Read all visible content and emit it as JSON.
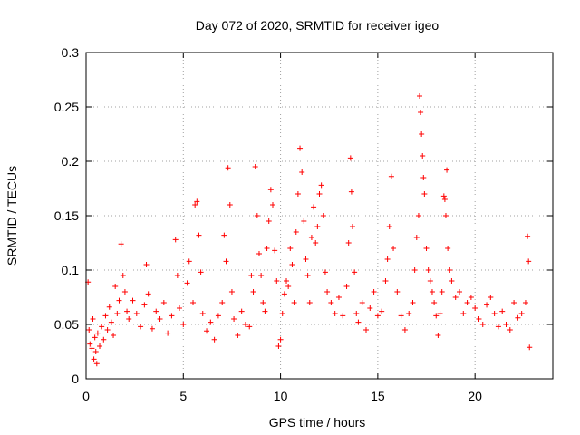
{
  "chart_data": {
    "type": "scatter",
    "title": "Day 072 of 2020, SRMTID for receiver igeo",
    "xlabel": "GPS time / hours",
    "ylabel": "SRMTID / TECUs",
    "xlim": [
      0,
      24
    ],
    "ylim": [
      0,
      0.3
    ],
    "x_ticks": [
      0,
      5,
      10,
      15,
      20
    ],
    "x_tick_labels": [
      "0",
      "5",
      "10",
      "15",
      "20"
    ],
    "y_ticks": [
      0,
      0.05,
      0.1,
      0.15,
      0.2,
      0.25,
      0.3
    ],
    "y_tick_labels": [
      "0",
      "0.05",
      "0.1",
      "0.15",
      "0.2",
      "0.25",
      "0.3"
    ],
    "grid": true,
    "marker": "+",
    "color": "#ff0000",
    "series": [
      {
        "name": "SRMTID",
        "points": [
          [
            0.1,
            0.089
          ],
          [
            0.15,
            0.045
          ],
          [
            0.2,
            0.032
          ],
          [
            0.3,
            0.028
          ],
          [
            0.35,
            0.055
          ],
          [
            0.4,
            0.018
          ],
          [
            0.45,
            0.038
          ],
          [
            0.5,
            0.025
          ],
          [
            0.55,
            0.014
          ],
          [
            0.6,
            0.042
          ],
          [
            0.7,
            0.03
          ],
          [
            0.8,
            0.048
          ],
          [
            0.9,
            0.036
          ],
          [
            1.0,
            0.058
          ],
          [
            1.1,
            0.045
          ],
          [
            1.2,
            0.066
          ],
          [
            1.3,
            0.052
          ],
          [
            1.4,
            0.04
          ],
          [
            1.5,
            0.085
          ],
          [
            1.6,
            0.06
          ],
          [
            1.7,
            0.072
          ],
          [
            1.8,
            0.124
          ],
          [
            1.9,
            0.095
          ],
          [
            2.0,
            0.08
          ],
          [
            2.1,
            0.062
          ],
          [
            2.2,
            0.055
          ],
          [
            2.4,
            0.072
          ],
          [
            2.6,
            0.06
          ],
          [
            2.8,
            0.048
          ],
          [
            3.0,
            0.068
          ],
          [
            3.1,
            0.105
          ],
          [
            3.2,
            0.078
          ],
          [
            3.4,
            0.046
          ],
          [
            3.6,
            0.062
          ],
          [
            3.8,
            0.055
          ],
          [
            4.0,
            0.07
          ],
          [
            4.2,
            0.042
          ],
          [
            4.4,
            0.058
          ],
          [
            4.6,
            0.128
          ],
          [
            4.7,
            0.095
          ],
          [
            4.8,
            0.065
          ],
          [
            5.0,
            0.05
          ],
          [
            5.2,
            0.088
          ],
          [
            5.3,
            0.108
          ],
          [
            5.5,
            0.07
          ],
          [
            5.6,
            0.16
          ],
          [
            5.7,
            0.163
          ],
          [
            5.8,
            0.132
          ],
          [
            5.9,
            0.098
          ],
          [
            6.0,
            0.06
          ],
          [
            6.2,
            0.044
          ],
          [
            6.4,
            0.052
          ],
          [
            6.6,
            0.036
          ],
          [
            6.8,
            0.058
          ],
          [
            7.0,
            0.07
          ],
          [
            7.1,
            0.132
          ],
          [
            7.2,
            0.108
          ],
          [
            7.3,
            0.194
          ],
          [
            7.4,
            0.16
          ],
          [
            7.5,
            0.08
          ],
          [
            7.6,
            0.055
          ],
          [
            7.8,
            0.04
          ],
          [
            8.0,
            0.062
          ],
          [
            8.2,
            0.05
          ],
          [
            8.4,
            0.048
          ],
          [
            8.5,
            0.095
          ],
          [
            8.6,
            0.08
          ],
          [
            8.7,
            0.195
          ],
          [
            8.8,
            0.15
          ],
          [
            8.9,
            0.115
          ],
          [
            9.0,
            0.095
          ],
          [
            9.1,
            0.07
          ],
          [
            9.2,
            0.062
          ],
          [
            9.3,
            0.12
          ],
          [
            9.4,
            0.145
          ],
          [
            9.5,
            0.174
          ],
          [
            9.6,
            0.16
          ],
          [
            9.7,
            0.118
          ],
          [
            9.8,
            0.09
          ],
          [
            9.9,
            0.03
          ],
          [
            10.0,
            0.036
          ],
          [
            10.1,
            0.06
          ],
          [
            10.2,
            0.078
          ],
          [
            10.3,
            0.09
          ],
          [
            10.4,
            0.085
          ],
          [
            10.5,
            0.12
          ],
          [
            10.6,
            0.105
          ],
          [
            10.7,
            0.07
          ],
          [
            10.8,
            0.135
          ],
          [
            10.9,
            0.17
          ],
          [
            11.0,
            0.212
          ],
          [
            11.1,
            0.19
          ],
          [
            11.2,
            0.145
          ],
          [
            11.3,
            0.11
          ],
          [
            11.4,
            0.095
          ],
          [
            11.5,
            0.07
          ],
          [
            11.6,
            0.13
          ],
          [
            11.7,
            0.158
          ],
          [
            11.8,
            0.125
          ],
          [
            11.9,
            0.14
          ],
          [
            12.0,
            0.17
          ],
          [
            12.1,
            0.178
          ],
          [
            12.2,
            0.15
          ],
          [
            12.3,
            0.098
          ],
          [
            12.4,
            0.08
          ],
          [
            12.6,
            0.07
          ],
          [
            12.8,
            0.06
          ],
          [
            13.0,
            0.075
          ],
          [
            13.2,
            0.058
          ],
          [
            13.4,
            0.085
          ],
          [
            13.5,
            0.125
          ],
          [
            13.6,
            0.203
          ],
          [
            13.65,
            0.172
          ],
          [
            13.7,
            0.14
          ],
          [
            13.8,
            0.098
          ],
          [
            13.9,
            0.06
          ],
          [
            14.0,
            0.052
          ],
          [
            14.2,
            0.07
          ],
          [
            14.4,
            0.045
          ],
          [
            14.6,
            0.065
          ],
          [
            14.8,
            0.08
          ],
          [
            15.0,
            0.058
          ],
          [
            15.2,
            0.062
          ],
          [
            15.4,
            0.09
          ],
          [
            15.5,
            0.11
          ],
          [
            15.6,
            0.14
          ],
          [
            15.7,
            0.186
          ],
          [
            15.8,
            0.12
          ],
          [
            16.0,
            0.08
          ],
          [
            16.2,
            0.058
          ],
          [
            16.4,
            0.045
          ],
          [
            16.6,
            0.06
          ],
          [
            16.8,
            0.07
          ],
          [
            16.9,
            0.1
          ],
          [
            17.0,
            0.13
          ],
          [
            17.1,
            0.15
          ],
          [
            17.15,
            0.26
          ],
          [
            17.2,
            0.245
          ],
          [
            17.25,
            0.225
          ],
          [
            17.3,
            0.205
          ],
          [
            17.35,
            0.185
          ],
          [
            17.4,
            0.17
          ],
          [
            17.5,
            0.12
          ],
          [
            17.6,
            0.1
          ],
          [
            17.7,
            0.09
          ],
          [
            17.8,
            0.08
          ],
          [
            17.9,
            0.07
          ],
          [
            18.0,
            0.058
          ],
          [
            18.1,
            0.04
          ],
          [
            18.2,
            0.06
          ],
          [
            18.3,
            0.08
          ],
          [
            18.4,
            0.168
          ],
          [
            18.45,
            0.165
          ],
          [
            18.5,
            0.15
          ],
          [
            18.55,
            0.192
          ],
          [
            18.6,
            0.12
          ],
          [
            18.7,
            0.1
          ],
          [
            18.8,
            0.09
          ],
          [
            19.0,
            0.075
          ],
          [
            19.2,
            0.08
          ],
          [
            19.4,
            0.06
          ],
          [
            19.6,
            0.07
          ],
          [
            19.8,
            0.075
          ],
          [
            20.0,
            0.065
          ],
          [
            20.2,
            0.055
          ],
          [
            20.4,
            0.05
          ],
          [
            20.6,
            0.068
          ],
          [
            20.8,
            0.075
          ],
          [
            21.0,
            0.06
          ],
          [
            21.2,
            0.048
          ],
          [
            21.4,
            0.062
          ],
          [
            21.6,
            0.05
          ],
          [
            21.8,
            0.045
          ],
          [
            22.0,
            0.07
          ],
          [
            22.2,
            0.056
          ],
          [
            22.4,
            0.06
          ],
          [
            22.6,
            0.07
          ],
          [
            22.7,
            0.131
          ],
          [
            22.75,
            0.108
          ],
          [
            22.8,
            0.029
          ]
        ]
      }
    ]
  }
}
